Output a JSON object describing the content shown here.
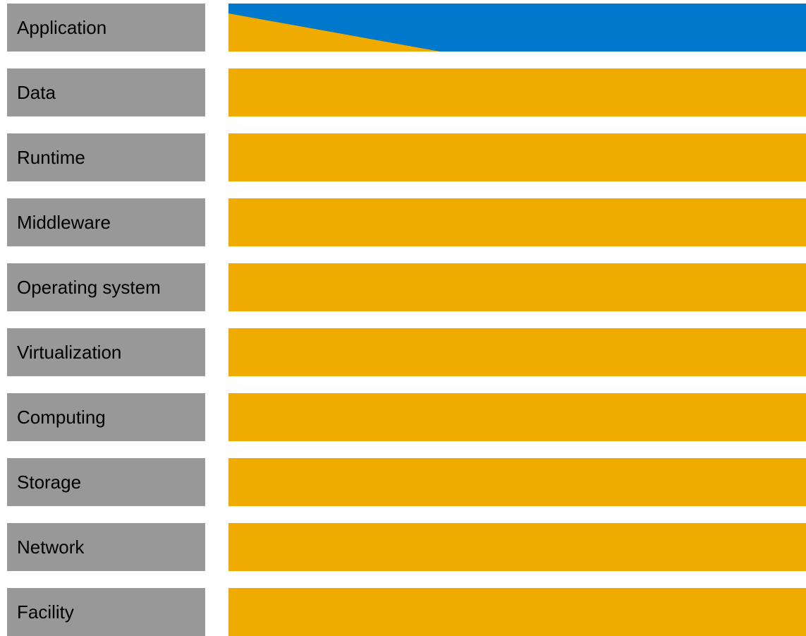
{
  "colors": {
    "label_bg": "#989898",
    "bar_managed": "#efab00",
    "bar_overlay": "#0078cb"
  },
  "layers": [
    {
      "label": "Application"
    },
    {
      "label": "Data"
    },
    {
      "label": "Runtime"
    },
    {
      "label": "Middleware"
    },
    {
      "label": "Operating system"
    },
    {
      "label": "Virtualization"
    },
    {
      "label": "Computing"
    },
    {
      "label": "Storage"
    },
    {
      "label": "Network"
    },
    {
      "label": "Facility"
    }
  ]
}
